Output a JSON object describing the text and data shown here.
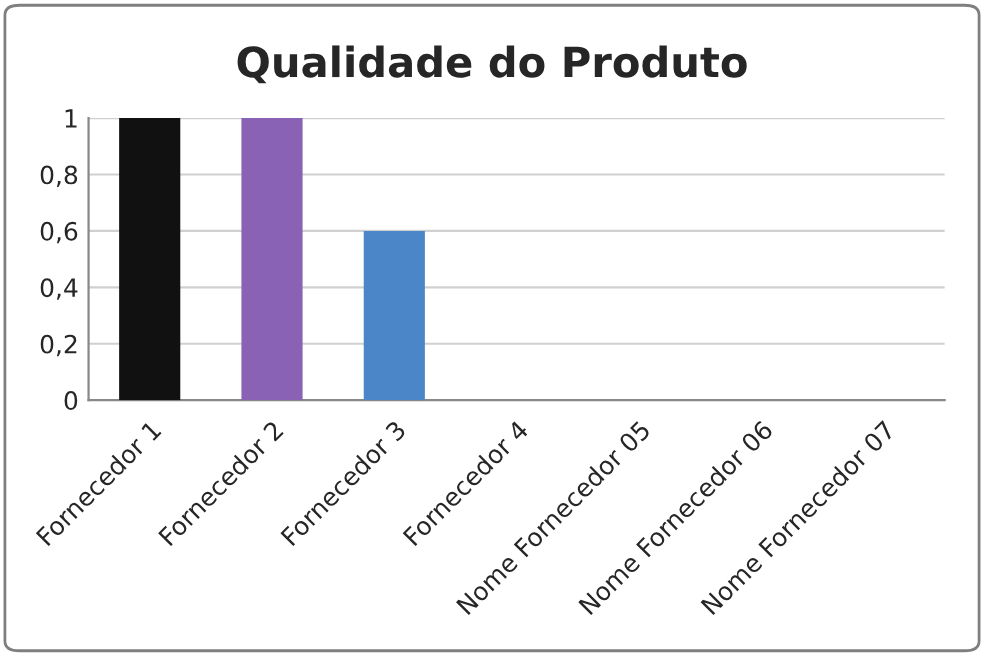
{
  "chart_data": {
    "type": "bar",
    "title": "Qualidade do Produto",
    "categories": [
      "Fornecedor 1",
      "Fornecedor 2",
      "Fornecedor 3",
      "Fornecedor 4",
      "Nome Fornecedor 05",
      "Nome Fornecedor 06",
      "Nome Fornecedor 07"
    ],
    "values": [
      1,
      1,
      0.6,
      0,
      0,
      0,
      0
    ],
    "colors": [
      "#111111",
      "#8a62b5",
      "#4a86c8",
      null,
      null,
      null,
      null
    ],
    "ylim": [
      0,
      1
    ],
    "yticks": [
      0,
      {
        "value": 0.2,
        "label": "0,2"
      },
      {
        "value": 0.4,
        "label": "0,4"
      },
      {
        "value": 0.6,
        "label": "0,6"
      },
      {
        "value": 0.8,
        "label": "0,8"
      },
      1
    ],
    "grid": "y",
    "legend": false
  }
}
